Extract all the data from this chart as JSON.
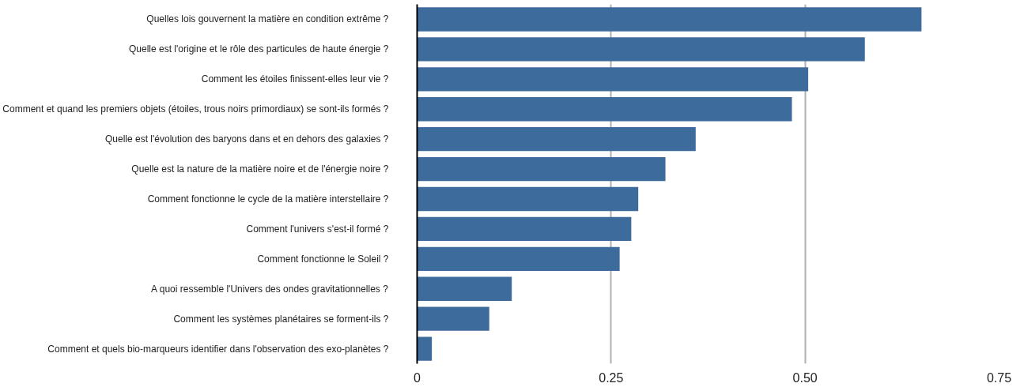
{
  "chart_data": {
    "type": "bar",
    "orientation": "horizontal",
    "categories": [
      "Quelles lois gouvernent la matière en condition extrême ?",
      "Quelle est l'origine et le rôle des particules de haute énergie ?",
      "Comment les étoiles finissent-elles leur vie ?",
      "Comment et quand les premiers objets (étoiles, trous noirs primordiaux) se sont-ils formés ?",
      "Quelle est l'évolution des baryons dans et en dehors des galaxies ?",
      "Quelle est la nature de la matière noire et de l'énergie noire ?",
      "Comment fonctionne le cycle de la matière interstellaire ?",
      "Comment l'univers s'est-il formé ?",
      "Comment fonctionne le Soleil ?",
      "A quoi ressemble l'Univers des ondes gravitationnelles ?",
      "Comment les systèmes planétaires se forment-ils ?",
      "Comment et quels bio-marqueurs identifier dans l'observation des exo-planètes ?"
    ],
    "values": [
      0.65,
      0.577,
      0.504,
      0.483,
      0.359,
      0.32,
      0.285,
      0.276,
      0.261,
      0.122,
      0.093,
      0.019
    ],
    "color": "#3d6b9c",
    "xlim": [
      0,
      0.75
    ],
    "xticks": [
      0,
      {
        "value": 0.25,
        "label": "0.25"
      },
      {
        "value": 0.5,
        "label": "0.50"
      },
      0.75
    ],
    "grid": "x"
  }
}
